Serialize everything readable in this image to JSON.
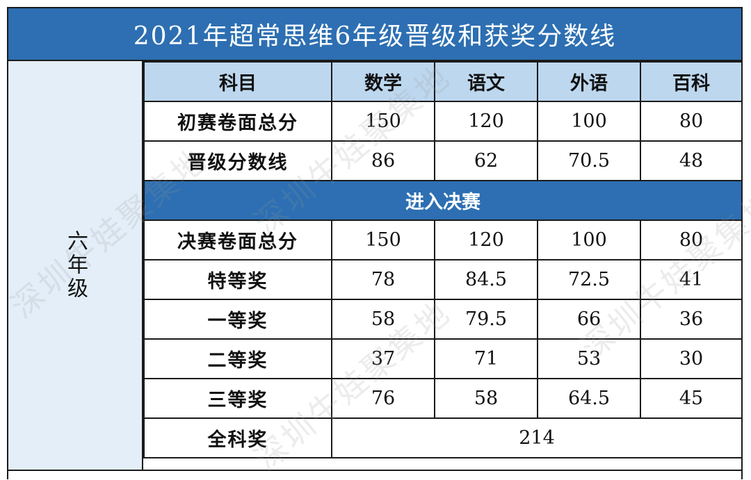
{
  "title": "2021年超常思维6年级晋级和获奖分数线",
  "grade_label": "六年级",
  "header": {
    "label": "科目",
    "subjects": [
      "数学",
      "语文",
      "外语",
      "百科"
    ]
  },
  "preliminary_rows": [
    {
      "label": "初赛卷面总分",
      "values": [
        "150",
        "120",
        "100",
        "80"
      ]
    },
    {
      "label": "晋级分数线",
      "values": [
        "86",
        "62",
        "70.5",
        "48"
      ]
    }
  ],
  "final_band": "进入决赛",
  "final_rows": [
    {
      "label": "决赛卷面总分",
      "values": [
        "150",
        "120",
        "100",
        "80"
      ]
    },
    {
      "label": "特等奖",
      "values": [
        "78",
        "84.5",
        "72.5",
        "41"
      ]
    },
    {
      "label": "一等奖",
      "values": [
        "58",
        "79.5",
        "66",
        "36"
      ]
    },
    {
      "label": "二等奖",
      "values": [
        "37",
        "71",
        "53",
        "30"
      ]
    },
    {
      "label": "三等奖",
      "values": [
        "76",
        "58",
        "64.5",
        "45"
      ]
    }
  ],
  "overall": {
    "label": "全科奖",
    "value": "214"
  },
  "watermark": "深圳牛娃聚集地",
  "colors": {
    "title_bg": "#2d6fb2",
    "header_bg": "#bdd7ee",
    "grade_bg": "#e3eef8"
  }
}
